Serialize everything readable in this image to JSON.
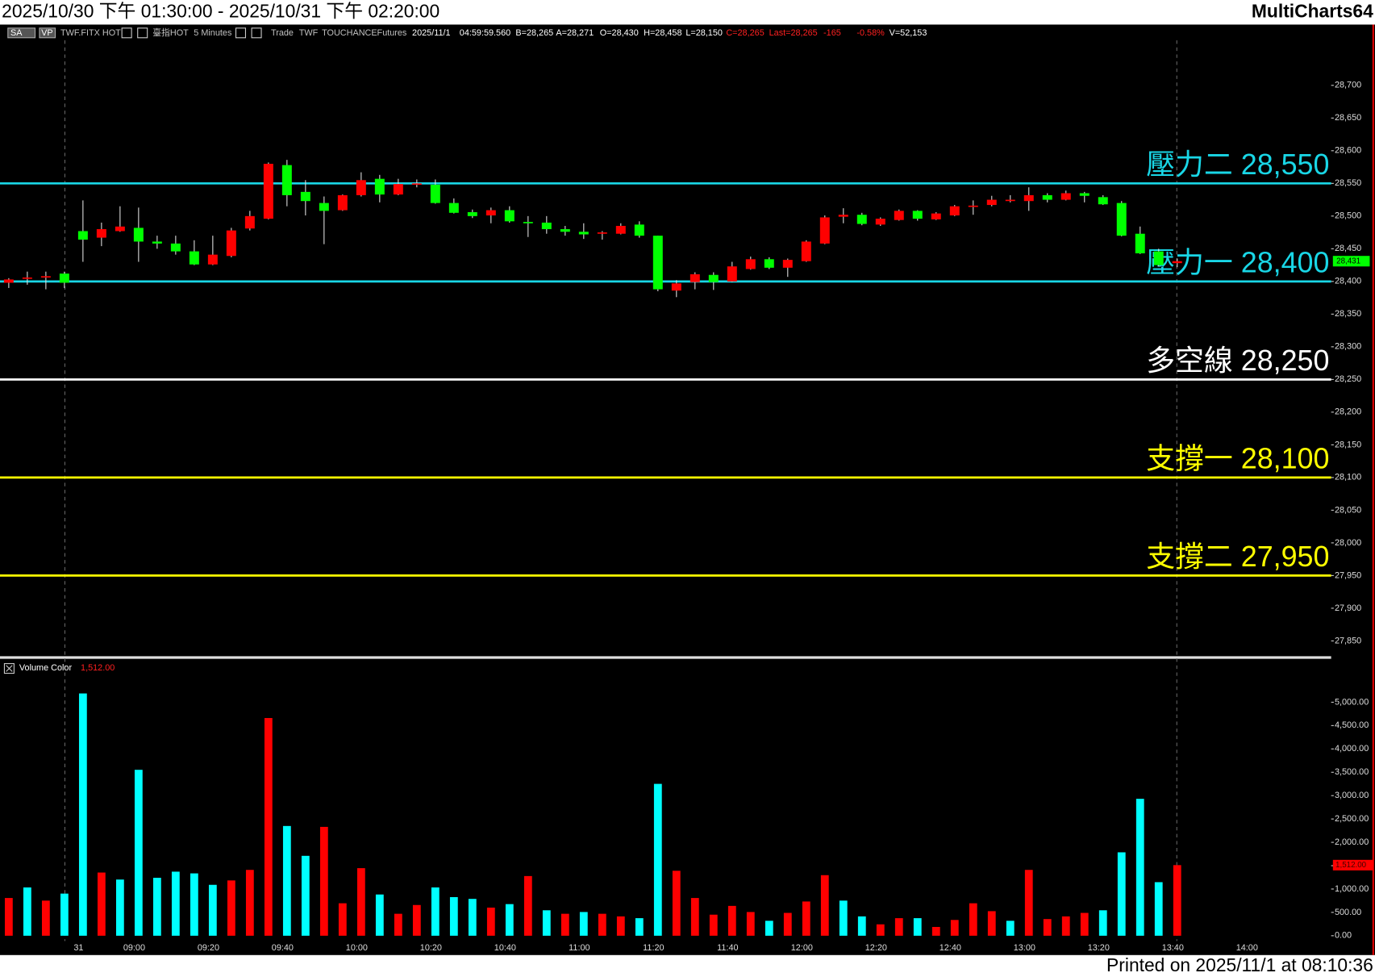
{
  "header": {
    "range": "2025/10/30 下午 01:30:00 - 2025/10/31 下午 02:20:00",
    "app": "MultiCharts64"
  },
  "toolbar": [
    {
      "text": "SA",
      "color": "#ffffff"
    },
    {
      "text": "VP",
      "color": "#ffffff"
    },
    {
      "text": "TWF.FITX HOT",
      "color": "#c0c0c0"
    },
    {
      "text": "臺指HOT",
      "color": "#c0c0c0"
    },
    {
      "text": "5 Minutes",
      "color": "#c0c0c0"
    },
    {
      "text": "Trade",
      "color": "#c0c0c0"
    },
    {
      "text": "TWF",
      "color": "#c0c0c0"
    },
    {
      "text": "TOUCHANCE",
      "color": "#c0c0c0"
    },
    {
      "text": "Futures",
      "color": "#c0c0c0"
    },
    {
      "text": "2025/11/1",
      "color": "#ffffff"
    },
    {
      "text": "04:59:59.560",
      "color": "#ffffff"
    },
    {
      "text": "B=28,265",
      "color": "#ffffff"
    },
    {
      "text": "A=28,271",
      "color": "#ffffff"
    },
    {
      "text": "O=28,430",
      "color": "#ffffff"
    },
    {
      "text": "H=28,458",
      "color": "#ffffff"
    },
    {
      "text": "L=28,150",
      "color": "#ffffff"
    },
    {
      "text": "C=28,265",
      "color": "#ff2020"
    },
    {
      "text": "Last=28,265",
      "color": "#ff2020"
    },
    {
      "text": "-165",
      "color": "#ff2020"
    },
    {
      "text": "-0.58%",
      "color": "#ff2020"
    },
    {
      "text": "V=52,153",
      "color": "#ffffff"
    }
  ],
  "chart_data": [
    {
      "type": "candlestick",
      "up_color": "#ff0000",
      "down_color": "#00ff00",
      "open": [
        28398,
        28404,
        28408,
        28412,
        28477,
        28467,
        28477,
        28482,
        28461,
        28458,
        28446,
        28426,
        28439,
        28481,
        28496,
        28578,
        28537,
        28520,
        28509,
        28532,
        28557,
        28533,
        28549,
        28548,
        28520,
        28506,
        28501,
        28509,
        28491,
        28490,
        28480,
        28476,
        28473,
        28473,
        28487,
        28470,
        28386,
        28399,
        28410,
        28400,
        28419,
        28434,
        28421,
        28431,
        28458,
        28499,
        28502,
        28487,
        28494,
        28508,
        28495,
        28501,
        28515,
        28517,
        28523,
        28523,
        28532,
        28525,
        28535,
        28529,
        28520,
        28473,
        28446,
        28428,
        null,
        null,
        null,
        null
      ],
      "high": [
        28405,
        28415,
        28415,
        28415,
        28524,
        28490,
        28515,
        28513,
        28470,
        28470,
        28463,
        28470,
        28482,
        28508,
        28582,
        28586,
        28555,
        28530,
        28533,
        28567,
        28563,
        28557,
        28556,
        28556,
        28527,
        28510,
        28513,
        28515,
        28500,
        28500,
        28485,
        28489,
        28477,
        28489,
        28492,
        28470,
        28402,
        28414,
        28414,
        28430,
        28438,
        28437,
        28435,
        28463,
        28501,
        28512,
        28505,
        28498,
        28510,
        28509,
        28506,
        28517,
        28524,
        28531,
        28532,
        28544,
        28535,
        28539,
        28537,
        28532,
        28523,
        28484,
        28450,
        28435,
        null,
        null,
        null,
        null
      ],
      "low": [
        28390,
        28395,
        28388,
        28390,
        28430,
        28454,
        28476,
        28430,
        28450,
        28441,
        28425,
        28425,
        28437,
        28478,
        28495,
        28515,
        28501,
        28457,
        28508,
        28530,
        28521,
        28532,
        28544,
        28519,
        28504,
        28497,
        28489,
        28490,
        28468,
        28473,
        28470,
        28465,
        28464,
        28472,
        28467,
        28385,
        28376,
        28388,
        28387,
        28399,
        28418,
        28419,
        28407,
        28430,
        28457,
        28489,
        28486,
        28485,
        28493,
        28493,
        28494,
        28500,
        28502,
        28515,
        28521,
        28508,
        28521,
        28524,
        28521,
        28517,
        28469,
        28442,
        28423,
        28422,
        null,
        null,
        null,
        null
      ],
      "close": [
        28403,
        28406,
        28408,
        28398,
        28464,
        28480,
        28484,
        28461,
        28458,
        28446,
        28426,
        28441,
        28478,
        28500,
        28580,
        28532,
        28523,
        28508,
        28532,
        28555,
        28533,
        28549,
        28550,
        28520,
        28505,
        28500,
        28509,
        28492,
        28490,
        28480,
        28476,
        28472,
        28475,
        28485,
        28470,
        28388,
        28397,
        28411,
        28399,
        28423,
        28434,
        28421,
        28433,
        28461,
        28498,
        28502,
        28488,
        28496,
        28508,
        28496,
        28504,
        28515,
        28516,
        28525,
        28525,
        28532,
        28525,
        28535,
        28531,
        28518,
        28470,
        28443,
        28425,
        28431,
        null,
        null,
        null,
        null
      ],
      "ylim": [
        27826,
        28793
      ],
      "yticks": [
        {
          "value": 27850,
          "label": "27,850"
        },
        {
          "value": 27900,
          "label": "27,900"
        },
        {
          "value": 27950,
          "label": "27,950"
        },
        {
          "value": 28000,
          "label": "28,000"
        },
        {
          "value": 28050,
          "label": "28,050"
        },
        {
          "value": 28100,
          "label": "28,100"
        },
        {
          "value": 28150,
          "label": "28,150"
        },
        {
          "value": 28200,
          "label": "28,200"
        },
        {
          "value": 28250,
          "label": "28,250"
        },
        {
          "value": 28300,
          "label": "28,300"
        },
        {
          "value": 28350,
          "label": "28,350"
        },
        {
          "value": 28400,
          "label": "28,400"
        },
        {
          "value": 28450,
          "label": "28,450"
        },
        {
          "value": 28500,
          "label": "28,500"
        },
        {
          "value": 28550,
          "label": "28,550"
        },
        {
          "value": 28600,
          "label": "28,600"
        },
        {
          "value": 28650,
          "label": "28,650"
        },
        {
          "value": 28700,
          "label": "28,700"
        }
      ],
      "levels": [
        {
          "label": "壓力二 28,550",
          "value": 28550,
          "color": "#19d6e6"
        },
        {
          "label": "壓力一 28,400",
          "value": 28400,
          "color": "#19d6e6"
        },
        {
          "label": "多空線 28,250",
          "value": 28250,
          "color": "#ffffff"
        },
        {
          "label": "支撐一 28,100",
          "value": 28100,
          "color": "#ffff00"
        },
        {
          "label": "支撐二 27,950",
          "value": 27950,
          "color": "#ffff00"
        }
      ],
      "last_price": {
        "value": 28431,
        "label": "28,431"
      }
    },
    {
      "type": "bar",
      "title": "Volume Color",
      "categories": [
        null,
        null,
        null,
        null,
        "31",
        null,
        null,
        "09:00",
        null,
        null,
        null,
        "09:20",
        null,
        null,
        null,
        "09:40",
        null,
        null,
        null,
        "10:00",
        null,
        null,
        null,
        "10:20",
        null,
        null,
        null,
        "10:40",
        null,
        null,
        null,
        "11:00",
        null,
        null,
        null,
        "11:20",
        null,
        null,
        null,
        "11:40",
        null,
        null,
        null,
        "12:00",
        null,
        null,
        null,
        "12:20",
        null,
        null,
        null,
        "12:40",
        null,
        null,
        null,
        "13:00",
        null,
        null,
        null,
        "13:20",
        null,
        null,
        null,
        "13:40",
        null,
        null,
        null,
        "14:00"
      ],
      "values": [
        808,
        1034,
        752,
        902,
        5188,
        1353,
        1203,
        3553,
        1241,
        1372,
        1335,
        1090,
        1184,
        1410,
        4662,
        2350,
        1711,
        2331,
        695,
        1447,
        883,
        470,
        658,
        1034,
        827,
        789,
        602,
        677,
        1278,
        545,
        470,
        508,
        470,
        414,
        376,
        3252,
        1391,
        808,
        451,
        639,
        508,
        320,
        489,
        733,
        1297,
        752,
        414,
        244,
        376,
        376,
        188,
        338,
        695,
        526,
        320,
        1410,
        357,
        414,
        489,
        545,
        1786,
        2932,
        1147,
        1512,
        null,
        null,
        null,
        null
      ],
      "colors": [
        "#ff0000",
        "#00ffff",
        "#ff0000",
        "#00ffff",
        "#00ffff",
        "#ff0000",
        "#00ffff",
        "#00ffff",
        "#00ffff",
        "#00ffff",
        "#00ffff",
        "#00ffff",
        "#ff0000",
        "#ff0000",
        "#ff0000",
        "#00ffff",
        "#00ffff",
        "#ff0000",
        "#ff0000",
        "#ff0000",
        "#00ffff",
        "#ff0000",
        "#ff0000",
        "#00ffff",
        "#00ffff",
        "#00ffff",
        "#ff0000",
        "#00ffff",
        "#ff0000",
        "#00ffff",
        "#ff0000",
        "#00ffff",
        "#ff0000",
        "#ff0000",
        "#00ffff",
        "#00ffff",
        "#ff0000",
        "#ff0000",
        "#ff0000",
        "#ff0000",
        "#ff0000",
        "#00ffff",
        "#ff0000",
        "#ff0000",
        "#ff0000",
        "#00ffff",
        "#00ffff",
        "#ff0000",
        "#ff0000",
        "#00ffff",
        "#ff0000",
        "#ff0000",
        "#ff0000",
        "#ff0000",
        "#00ffff",
        "#ff0000",
        "#ff0000",
        "#ff0000",
        "#ff0000",
        "#00ffff",
        "#00ffff",
        "#00ffff",
        "#00ffff",
        "#ff0000",
        null,
        null,
        null,
        null
      ],
      "ylim": [
        -113,
        5902
      ],
      "yticks": [
        {
          "value": 0,
          "label": "0.00"
        },
        {
          "value": 500,
          "label": "500.00"
        },
        {
          "value": 1000,
          "label": "1,000.00"
        },
        {
          "value": 1500,
          "label": "1,500.00"
        },
        {
          "value": 2000,
          "label": "2,000.00"
        },
        {
          "value": 2500,
          "label": "2,500.00"
        },
        {
          "value": 3000,
          "label": "3,000.00"
        },
        {
          "value": 3500,
          "label": "3,500.00"
        },
        {
          "value": 4000,
          "label": "4,000.00"
        },
        {
          "value": 4500,
          "label": "4,500.00"
        },
        {
          "value": 5000,
          "label": "5,000.00"
        }
      ],
      "last_value": {
        "value": 1512,
        "label": "1,512.00"
      }
    }
  ],
  "footer": "Printed on 2025/11/1 at 08:10:36"
}
